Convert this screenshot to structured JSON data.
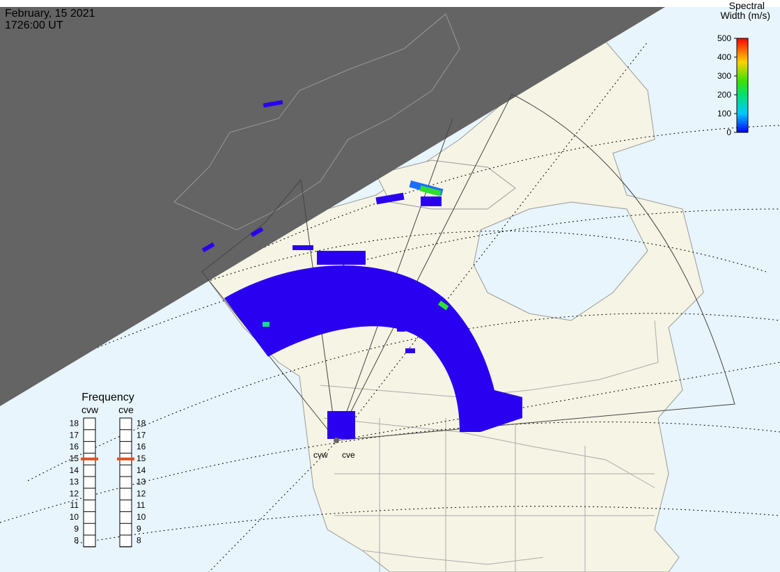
{
  "header": {
    "date": "February, 15 2021",
    "time": "1726:00 UT"
  },
  "colorbar": {
    "title": [
      "Spectral",
      "Width (m/s)"
    ],
    "ticks": [
      0,
      100,
      200,
      300,
      400,
      500
    ]
  },
  "frequency": {
    "title": "Frequency",
    "radars": [
      "cvw",
      "cve"
    ],
    "ticks": [
      8,
      9,
      10,
      11,
      12,
      13,
      14,
      15,
      16,
      17,
      18
    ],
    "selected": [
      15,
      15
    ]
  },
  "map": {
    "radar_labels": [
      "cvw",
      "cve"
    ]
  }
}
